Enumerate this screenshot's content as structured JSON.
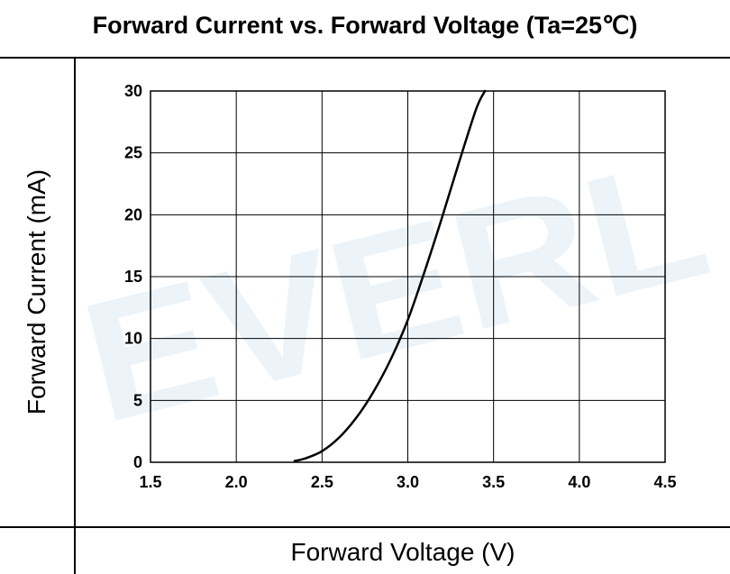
{
  "page": {
    "title": "Forward Current vs. Forward Voltage (Ta=25℃)",
    "ylabel": "Forward Current (mA)",
    "xlabel": "Forward Voltage (V)",
    "watermark": "EVERL"
  },
  "colors": {
    "line": "#000000",
    "grid": "#000000",
    "watermark": "#6fa8d6"
  },
  "chart_data": {
    "type": "line",
    "title": "Forward Current vs. Forward Voltage (Ta=25℃)",
    "xlabel": "Forward Voltage (V)",
    "ylabel": "Forward Current (mA)",
    "xlim": [
      1.5,
      4.5
    ],
    "ylim": [
      0,
      30
    ],
    "xticks": [
      "1.5",
      "2.0",
      "2.5",
      "3.0",
      "3.5",
      "4.0",
      "4.5"
    ],
    "yticks": [
      "0",
      "5",
      "10",
      "15",
      "20",
      "25",
      "30"
    ],
    "grid": true,
    "series": [
      {
        "x": [
          2.34,
          2.4,
          2.5,
          2.6,
          2.7,
          2.8,
          2.9,
          3.0,
          3.1,
          3.2,
          3.3,
          3.4,
          3.45
        ],
        "y": [
          0.1,
          0.3,
          0.9,
          2.0,
          3.6,
          5.7,
          8.3,
          11.5,
          15.5,
          19.8,
          24.3,
          28.6,
          30.0
        ]
      }
    ]
  }
}
